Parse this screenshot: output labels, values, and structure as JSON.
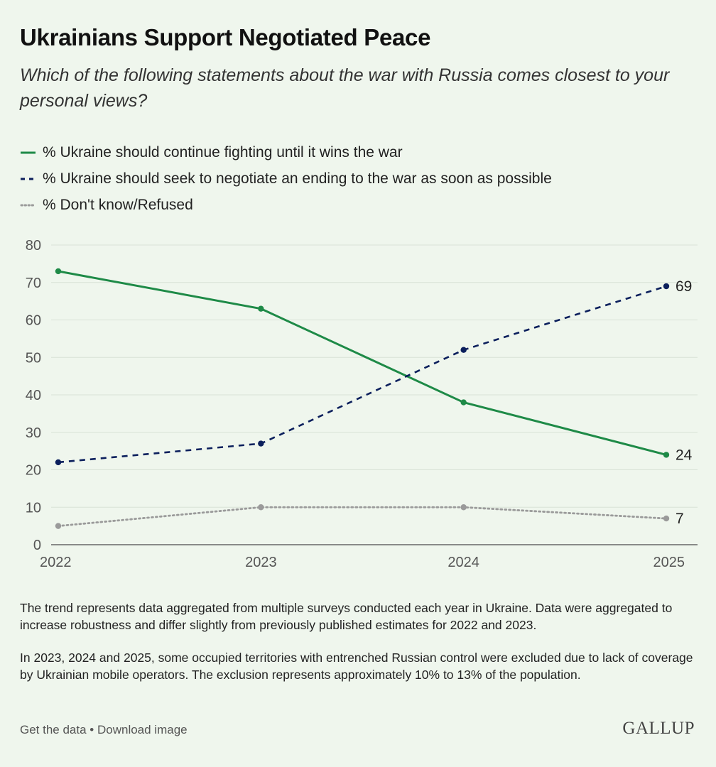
{
  "title": "Ukrainians Support Negotiated Peace",
  "subtitle": "Which of the following statements about the war with Russia comes closest to your personal views?",
  "legend": [
    "% Ukraine should continue fighting until it wins the war",
    "% Ukraine should seek to negotiate an ending to the war as soon as possible",
    "% Don't know/Refused"
  ],
  "colors": {
    "continue": "#1e8a47",
    "negotiate": "#0b1f5c",
    "dontknow": "#9a9a9a",
    "grid": "#d8e2d6",
    "axis": "#666666"
  },
  "chart_data": {
    "type": "line",
    "categories": [
      "2022",
      "2023",
      "2024",
      "2025"
    ],
    "ylim": [
      0,
      80
    ],
    "yticks": [
      0,
      10,
      20,
      30,
      40,
      50,
      60,
      70,
      80
    ],
    "series": [
      {
        "key": "continue",
        "name": "% Ukraine should continue fighting until it wins the war",
        "values": [
          73,
          63,
          38,
          24
        ],
        "end_label": "24",
        "style": "solid"
      },
      {
        "key": "negotiate",
        "name": "% Ukraine should seek to negotiate an ending to the war as soon as possible",
        "values": [
          22,
          27,
          52,
          69
        ],
        "end_label": "69",
        "style": "dashed"
      },
      {
        "key": "dontknow",
        "name": "% Don't know/Refused",
        "values": [
          5,
          10,
          10,
          7
        ],
        "end_label": "7",
        "style": "dotted"
      }
    ],
    "grid": true
  },
  "notes": [
    "The trend represents data aggregated from multiple surveys conducted each year in Ukraine. Data were aggregated to increase robustness and differ slightly from previously published estimates for 2022 and 2023.",
    "In 2023, 2024 and 2025, some occupied territories with entrenched Russian control were excluded due to lack of coverage by Ukrainian mobile operators. The exclusion represents approximately 10% to 13% of the population."
  ],
  "footer": {
    "get_data": "Get the data",
    "separator": " • ",
    "download": "Download image",
    "logo": "GALLUP"
  }
}
